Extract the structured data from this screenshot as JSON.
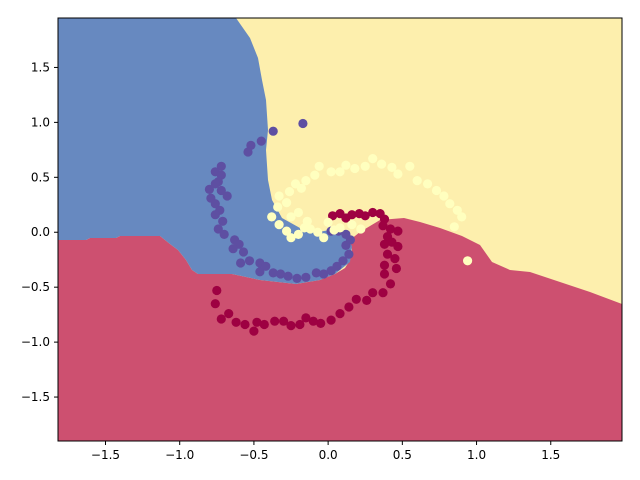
{
  "chart_data": {
    "type": "scatter",
    "title": "",
    "xlabel": "",
    "ylabel": "",
    "xlim": [
      -1.82,
      1.98
    ],
    "ylim": [
      -1.9,
      1.95
    ],
    "grid": false,
    "legend": "none",
    "x_ticks": [
      -1.5,
      -1.0,
      -0.5,
      0.0,
      0.5,
      1.0,
      1.5
    ],
    "x_tick_labels": [
      "−1.5",
      "−1.0",
      "−0.5",
      "0.0",
      "0.5",
      "1.0",
      "1.5"
    ],
    "y_ticks": [
      1.5,
      1.0,
      0.5,
      0.0,
      -0.5,
      -1.0,
      -1.5
    ],
    "y_tick_labels": [
      "1.5",
      "1.0",
      "0.5",
      "0.0",
      "−0.5",
      "−1.0",
      "−1.5"
    ],
    "regions": {
      "red": {
        "color": "#cd5070"
      },
      "blue": {
        "color": "#6789c0"
      },
      "yellow": {
        "color": "#fdefad"
      }
    },
    "series": [
      {
        "color": "#5e4fa2",
        "points": [
          [
            -0.37,
            0.92
          ],
          [
            -0.17,
            0.99
          ],
          [
            -0.45,
            0.83
          ],
          [
            -0.52,
            0.79
          ],
          [
            -0.54,
            0.73
          ],
          [
            -0.72,
            0.6
          ],
          [
            -0.76,
            0.55
          ],
          [
            -0.72,
            0.52
          ],
          [
            -0.74,
            0.46
          ],
          [
            -0.8,
            0.39
          ],
          [
            -0.76,
            0.44
          ],
          [
            -0.72,
            0.38
          ],
          [
            -0.68,
            0.33
          ],
          [
            -0.79,
            0.31
          ],
          [
            -0.76,
            0.26
          ],
          [
            -0.73,
            0.2
          ],
          [
            -0.76,
            0.16
          ],
          [
            -0.71,
            0.1
          ],
          [
            -0.74,
            0.03
          ],
          [
            -0.7,
            -0.02
          ],
          [
            -0.63,
            -0.07
          ],
          [
            -0.6,
            -0.11
          ],
          [
            -0.64,
            -0.15
          ],
          [
            -0.57,
            -0.18
          ],
          [
            -0.59,
            -0.28
          ],
          [
            -0.53,
            -0.26
          ],
          [
            -0.46,
            -0.28
          ],
          [
            -0.42,
            -0.31
          ],
          [
            -0.46,
            -0.36
          ],
          [
            -0.37,
            -0.37
          ],
          [
            -0.32,
            -0.38
          ],
          [
            -0.27,
            -0.4
          ],
          [
            -0.21,
            -0.42
          ],
          [
            -0.15,
            -0.41
          ],
          [
            -0.08,
            -0.37
          ],
          [
            -0.03,
            -0.38
          ],
          [
            0.02,
            -0.35
          ],
          [
            0.06,
            -0.31
          ],
          [
            0.1,
            -0.26
          ],
          [
            0.14,
            -0.2
          ],
          [
            0.12,
            -0.12
          ],
          [
            0.15,
            -0.07
          ],
          [
            0.12,
            -0.02
          ],
          [
            0.07,
            0.01
          ],
          [
            0.02,
            0.01
          ]
        ]
      },
      {
        "color": "#9e0142",
        "points": [
          [
            0.03,
            0.15
          ],
          [
            0.08,
            0.17
          ],
          [
            0.12,
            0.13
          ],
          [
            0.16,
            0.16
          ],
          [
            0.21,
            0.17
          ],
          [
            0.25,
            0.15
          ],
          [
            0.3,
            0.18
          ],
          [
            0.35,
            0.17
          ],
          [
            0.38,
            0.12
          ],
          [
            0.37,
            0.06
          ],
          [
            0.42,
            0.03
          ],
          [
            0.47,
            0.01
          ],
          [
            0.4,
            -0.04
          ],
          [
            0.43,
            -0.09
          ],
          [
            0.38,
            -0.11
          ],
          [
            0.47,
            -0.13
          ],
          [
            0.4,
            -0.2
          ],
          [
            0.45,
            -0.24
          ],
          [
            0.38,
            -0.3
          ],
          [
            0.46,
            -0.33
          ],
          [
            0.38,
            -0.38
          ],
          [
            0.42,
            -0.47
          ],
          [
            0.37,
            -0.55
          ],
          [
            0.3,
            -0.55
          ],
          [
            0.26,
            -0.62
          ],
          [
            0.19,
            -0.61
          ],
          [
            0.14,
            -0.68
          ],
          [
            0.08,
            -0.74
          ],
          [
            0.02,
            -0.8
          ],
          [
            -0.05,
            -0.83
          ],
          [
            -0.1,
            -0.81
          ],
          [
            -0.15,
            -0.78
          ],
          [
            -0.19,
            -0.84
          ],
          [
            -0.25,
            -0.85
          ],
          [
            -0.3,
            -0.81
          ],
          [
            -0.36,
            -0.81
          ],
          [
            -0.43,
            -0.84
          ],
          [
            -0.48,
            -0.82
          ],
          [
            -0.5,
            -0.9
          ],
          [
            -0.56,
            -0.84
          ],
          [
            -0.62,
            -0.82
          ],
          [
            -0.67,
            -0.74
          ],
          [
            -0.72,
            -0.79
          ],
          [
            -0.76,
            -0.65
          ],
          [
            -0.75,
            -0.53
          ]
        ]
      },
      {
        "color": "#ffffbf",
        "points": [
          [
            -0.38,
            0.14
          ],
          [
            -0.33,
            0.07
          ],
          [
            -0.28,
            0.01
          ],
          [
            -0.25,
            -0.05
          ],
          [
            -0.2,
            -0.02
          ],
          [
            -0.16,
            0.04
          ],
          [
            -0.12,
            0.03
          ],
          [
            -0.07,
            0.0
          ],
          [
            -0.03,
            -0.05
          ],
          [
            0.0,
            0.09
          ],
          [
            0.04,
            0.02
          ],
          [
            0.08,
            0.04
          ],
          [
            0.16,
            0.07
          ],
          [
            0.22,
            0.03
          ],
          [
            -0.25,
            0.14
          ],
          [
            -0.2,
            0.18
          ],
          [
            -0.14,
            0.1
          ],
          [
            -0.34,
            0.23
          ],
          [
            -0.28,
            0.27
          ],
          [
            -0.33,
            0.33
          ],
          [
            -0.26,
            0.37
          ],
          [
            -0.22,
            0.44
          ],
          [
            -0.18,
            0.4
          ],
          [
            -0.15,
            0.47
          ],
          [
            -0.09,
            0.52
          ],
          [
            -0.06,
            0.6
          ],
          [
            0.02,
            0.55
          ],
          [
            0.08,
            0.55
          ],
          [
            0.12,
            0.61
          ],
          [
            0.18,
            0.58
          ],
          [
            0.25,
            0.6
          ],
          [
            0.3,
            0.67
          ],
          [
            0.36,
            0.62
          ],
          [
            0.43,
            0.59
          ],
          [
            0.47,
            0.53
          ],
          [
            0.55,
            0.6
          ],
          [
            0.6,
            0.47
          ],
          [
            0.67,
            0.44
          ],
          [
            0.73,
            0.38
          ],
          [
            0.78,
            0.33
          ],
          [
            0.82,
            0.26
          ],
          [
            0.87,
            0.2
          ],
          [
            0.9,
            0.14
          ],
          [
            0.85,
            0.05
          ],
          [
            0.94,
            -0.26
          ]
        ]
      }
    ]
  }
}
